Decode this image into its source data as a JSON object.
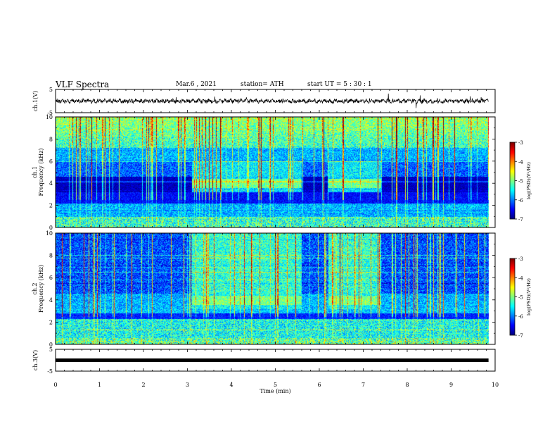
{
  "header": {
    "title": "VLF Spectra",
    "date": "Mar.6  , 2021",
    "station": "station= ATH",
    "start": "start  UT =   5  : 30 : 1"
  },
  "chart_data": {
    "type": "heatmap",
    "xlabel": "Time  (min)",
    "xlim": [
      0,
      10
    ],
    "xticks": [
      "0",
      "1",
      "2",
      "3",
      "4",
      "5",
      "6",
      "7",
      "8",
      "9",
      "10"
    ],
    "panels": [
      {
        "id": "ch1-waveform",
        "type": "line",
        "ylabel": "ch.1(V)",
        "ylim": [
          -5,
          5
        ],
        "yticks": [
          "5",
          "-5"
        ],
        "trace_level": 0
      },
      {
        "id": "ch1-spectrogram",
        "type": "heatmap",
        "ylabel_top": "ch.1",
        "ylabel": "Frequency  (kHz)",
        "ylim": [
          0,
          10
        ],
        "yticks": [
          "0",
          "2",
          "4",
          "6",
          "8",
          "10"
        ],
        "colorbar": {
          "label": "log(PSD)(V²/Hz)",
          "range": [
            -7,
            -3
          ],
          "ticks": [
            "-3",
            "-4",
            "-5",
            "-6",
            "-7"
          ]
        }
      },
      {
        "id": "ch2-spectrogram",
        "type": "heatmap",
        "ylabel_top": "ch.2",
        "ylabel": "Frequency  (kHz)",
        "ylim": [
          0,
          10
        ],
        "yticks": [
          "0",
          "2",
          "4",
          "6",
          "8",
          "10"
        ],
        "colorbar": {
          "label": "log(PSD)(V²/Hz)",
          "range": [
            -7,
            -3
          ],
          "ticks": [
            "-3",
            "-4",
            "-5",
            "-6",
            "-7"
          ]
        }
      },
      {
        "id": "ch3-waveform",
        "type": "line",
        "ylabel": "ch.3(V)",
        "ylim": [
          -5,
          5
        ],
        "yticks": [
          "5",
          "-5"
        ],
        "trace_level": 0
      }
    ],
    "active_intervals_min": [
      [
        3.1,
        5.6
      ],
      [
        6.2,
        7.4
      ]
    ],
    "enhanced_band_khz": [
      3.6,
      4.4
    ],
    "recording_end_min": 9.85
  },
  "colors": {
    "background_quiet": "#0a1aa8",
    "background_active": "#19e29a",
    "waveform": "#000000"
  }
}
